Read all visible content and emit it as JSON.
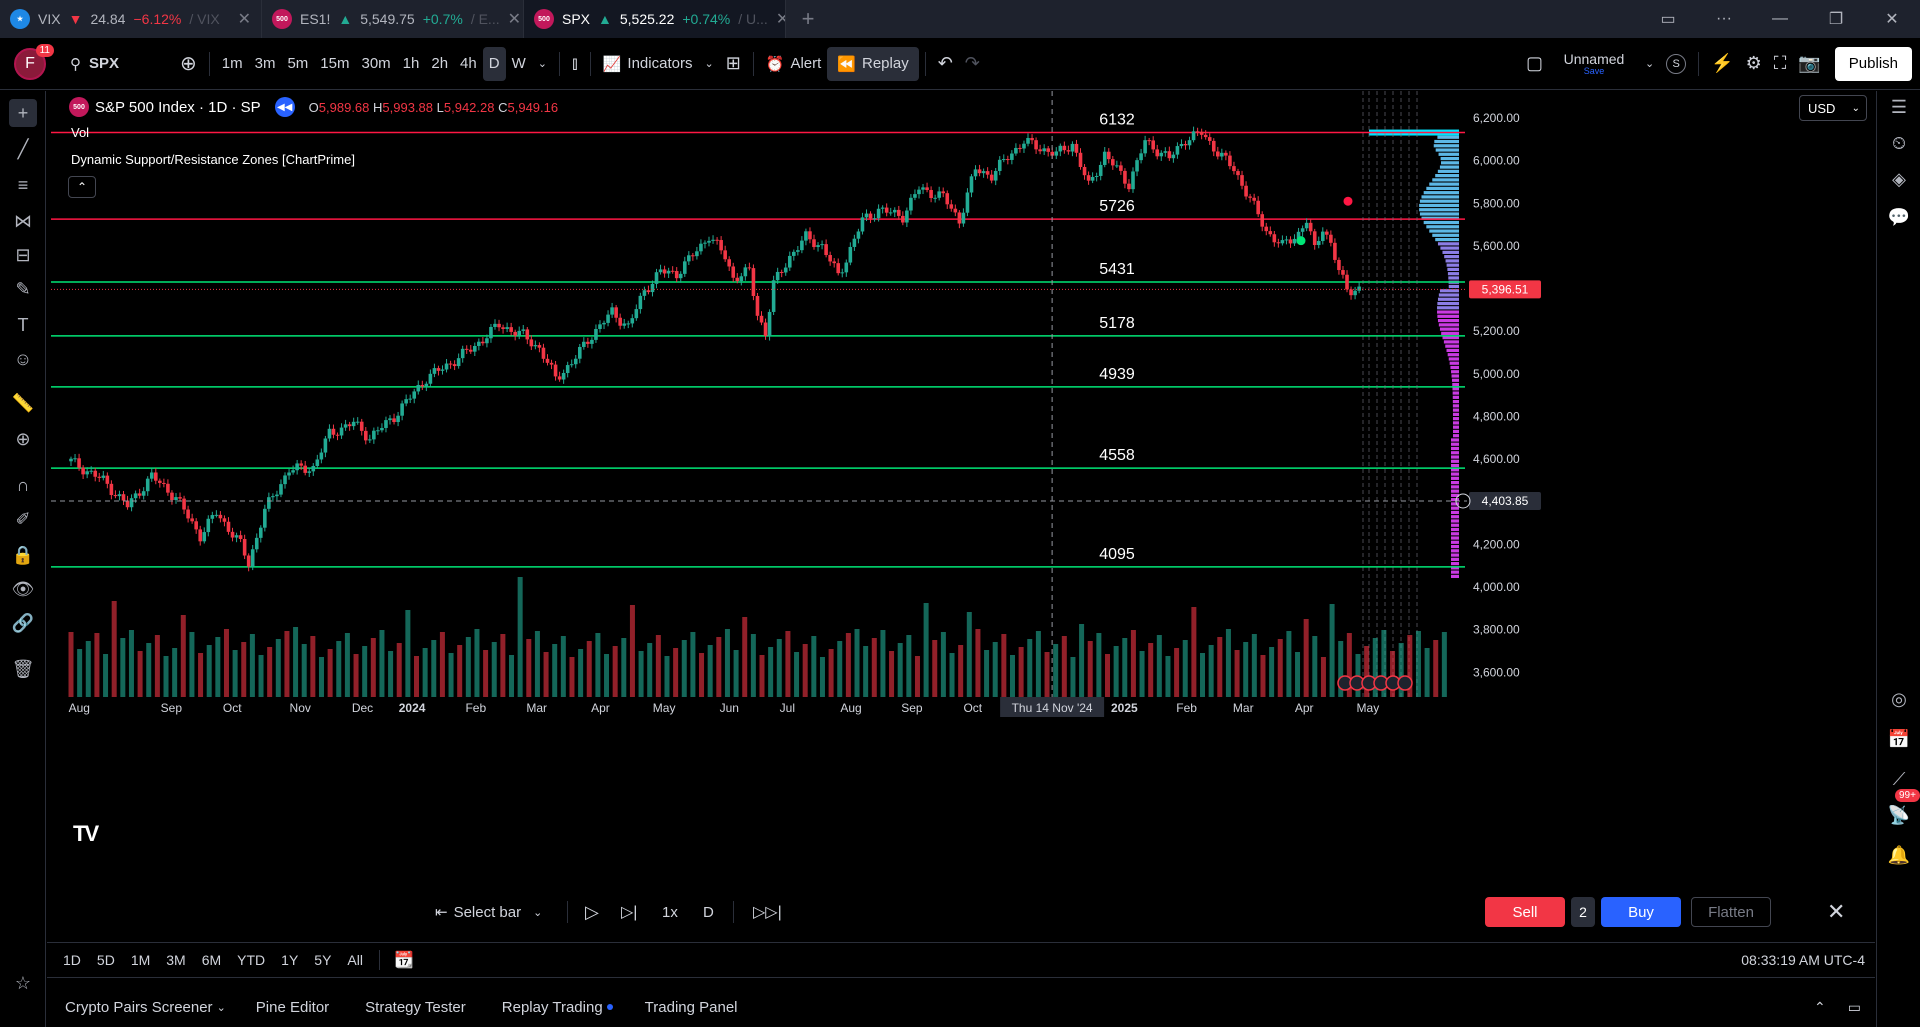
{
  "tabs": [
    {
      "symbol": "VIX",
      "dir": "▼",
      "price": "24.84",
      "change": "−6.12%",
      "suffix": "/ VIX",
      "flag_color": "#1e88e5",
      "flag_text": "US"
    },
    {
      "symbol": "ES1!",
      "dir": "▲",
      "price": "5,549.75",
      "change": "+0.7%",
      "suffix": "/ E...",
      "flag_color": "#c2185b",
      "flag_text": "500"
    },
    {
      "symbol": "SPX",
      "dir": "▲",
      "price": "5,525.22",
      "change": "+0.74%",
      "suffix": "/ U...",
      "flag_color": "#c2185b",
      "flag_text": "500"
    }
  ],
  "toolbar": {
    "avatar_letter": "F",
    "avatar_badge": "11",
    "symbol": "SPX",
    "intervals": [
      "1m",
      "3m",
      "5m",
      "15m",
      "30m",
      "1h",
      "2h",
      "4h",
      "D",
      "W"
    ],
    "active_interval": "D",
    "indicators_label": "Indicators",
    "alert_label": "Alert",
    "replay_label": "Replay",
    "layout_name": "Unnamed",
    "layout_status": "Save",
    "layout_badge": "S",
    "publish_label": "Publish"
  },
  "legend": {
    "title": "S&P 500 Index · 1D · SP",
    "o_label": "O",
    "o": "5,989.68",
    "h_label": "H",
    "h": "5,993.88",
    "l_label": "L",
    "l": "5,942.28",
    "c_label": "C",
    "c": "5,949.16",
    "vol_label": "Vol",
    "indicator_label": "Dynamic Support/Resistance Zones [ChartPrime]",
    "currency": "USD"
  },
  "chart_data": {
    "type": "candlestick",
    "title": "S&P 500 Index · 1D · SP",
    "ylim": [
      3550,
      6280
    ],
    "y_ticks": [
      "6,200.00",
      "6,000.00",
      "5,800.00",
      "5,600.00",
      "5,400.00",
      "5,200.00",
      "5,000.00",
      "4,800.00",
      "4,600.00",
      "4,400.00",
      "4,200.00",
      "4,000.00",
      "3,800.00",
      "3,600.00"
    ],
    "x_ticks": [
      "Aug",
      "Sep",
      "Oct",
      "Nov",
      "Dec",
      "2024",
      "Feb",
      "Mar",
      "Apr",
      "May",
      "Jun",
      "Jul",
      "Aug",
      "Sep",
      "Oct",
      "Thu 14 Nov '24",
      "2025",
      "Feb",
      "Mar",
      "Apr",
      "May"
    ],
    "price_path": [
      [
        0,
        4590
      ],
      [
        4,
        4500
      ],
      [
        7,
        4380
      ],
      [
        10,
        4520
      ],
      [
        13,
        4420
      ],
      [
        16,
        4240
      ],
      [
        18,
        4350
      ],
      [
        21,
        4200
      ],
      [
        22,
        4110
      ],
      [
        24,
        4360
      ],
      [
        27,
        4550
      ],
      [
        30,
        4560
      ],
      [
        32,
        4720
      ],
      [
        35,
        4770
      ],
      [
        37,
        4700
      ],
      [
        40,
        4800
      ],
      [
        44,
        4980
      ],
      [
        47,
        5050
      ],
      [
        50,
        5130
      ],
      [
        53,
        5230
      ],
      [
        56,
        5180
      ],
      [
        58,
        5120
      ],
      [
        60,
        4980
      ],
      [
        62,
        5050
      ],
      [
        64,
        5160
      ],
      [
        67,
        5290
      ],
      [
        69,
        5220
      ],
      [
        71,
        5390
      ],
      [
        73,
        5480
      ],
      [
        75,
        5470
      ],
      [
        78,
        5600
      ],
      [
        79,
        5650
      ],
      [
        81,
        5550
      ],
      [
        82,
        5450
      ],
      [
        84,
        5480
      ],
      [
        85,
        5280
      ],
      [
        86,
        5190
      ],
      [
        87,
        5420
      ],
      [
        89,
        5550
      ],
      [
        91,
        5640
      ],
      [
        93,
        5600
      ],
      [
        95,
        5460
      ],
      [
        96,
        5540
      ],
      [
        98,
        5720
      ],
      [
        100,
        5770
      ],
      [
        103,
        5740
      ],
      [
        105,
        5870
      ],
      [
        108,
        5830
      ],
      [
        110,
        5720
      ],
      [
        112,
        5960
      ],
      [
        114,
        5930
      ],
      [
        116,
        6020
      ],
      [
        118,
        6090
      ],
      [
        120,
        6060
      ],
      [
        122,
        6030
      ],
      [
        124,
        6080
      ],
      [
        126,
        5880
      ],
      [
        128,
        6030
      ],
      [
        131,
        5890
      ],
      [
        133,
        6090
      ],
      [
        136,
        6010
      ],
      [
        138,
        6100
      ],
      [
        140,
        6130
      ],
      [
        142,
        6040
      ],
      [
        144,
        5960
      ],
      [
        146,
        5820
      ],
      [
        148,
        5670
      ],
      [
        150,
        5600
      ],
      [
        152,
        5660
      ],
      [
        153,
        5720
      ],
      [
        154,
        5580
      ],
      [
        155,
        5690
      ],
      [
        156,
        5610
      ],
      [
        157,
        5480
      ],
      [
        158,
        5397
      ]
    ],
    "last_price": "5,396.51",
    "crosshair_price": "4,403.85",
    "crosshair_date": "Thu 14 Nov '24",
    "zones": [
      {
        "label": "6132",
        "value": 6132,
        "color": "#ff1744"
      },
      {
        "label": "5726",
        "value": 5726,
        "color": "#ff1744"
      },
      {
        "label": "5431",
        "value": 5431,
        "color": "#00e676"
      },
      {
        "label": "5178",
        "value": 5178,
        "color": "#00e676"
      },
      {
        "label": "4939",
        "value": 4939,
        "color": "#00e676"
      },
      {
        "label": "4558",
        "value": 4558,
        "color": "#00e676"
      },
      {
        "label": "4095",
        "value": 4095,
        "color": "#00e676"
      }
    ],
    "signals": [
      {
        "type": "sell",
        "color": "#ff1744",
        "price": 5810
      },
      {
        "type": "buy",
        "color": "#00e676",
        "price": 5625
      }
    ],
    "up_color": "#22ab94",
    "down_color": "#f23645"
  },
  "replay": {
    "select_bar": "Select bar",
    "speed": "1x",
    "interval": "D",
    "sell": "Sell",
    "qty": "2",
    "buy": "Buy",
    "flatten": "Flatten"
  },
  "ranges": [
    "1D",
    "5D",
    "1M",
    "3M",
    "6M",
    "YTD",
    "1Y",
    "5Y",
    "All"
  ],
  "clock": "08:33:19 AM UTC-4",
  "panels": [
    "Crypto Pairs Screener",
    "Pine Editor",
    "Strategy Tester",
    "Replay Trading",
    "Trading Panel"
  ],
  "notifications_badge": "99+"
}
